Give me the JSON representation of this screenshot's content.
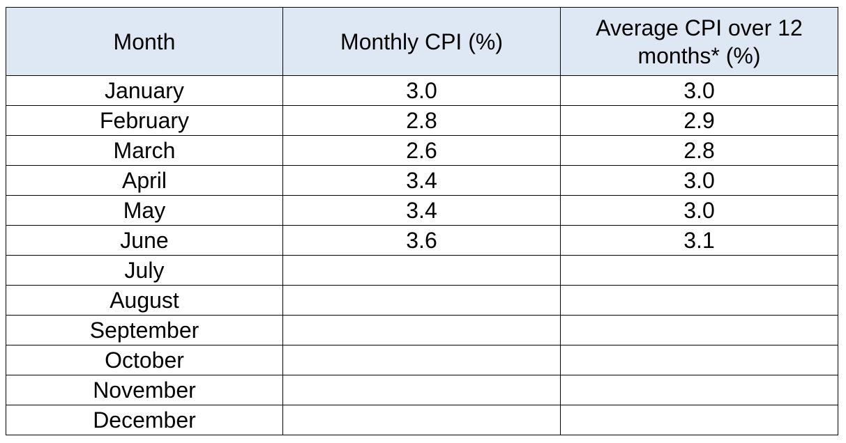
{
  "table": {
    "headers": [
      "Month",
      "Monthly CPI (%)",
      "Average CPI over 12 months* (%)"
    ],
    "rows": [
      {
        "month": "January",
        "monthly": "3.0",
        "average": "3.0"
      },
      {
        "month": "February",
        "monthly": "2.8",
        "average": "2.9"
      },
      {
        "month": "March",
        "monthly": "2.6",
        "average": "2.8"
      },
      {
        "month": "April",
        "monthly": "3.4",
        "average": "3.0"
      },
      {
        "month": "May",
        "monthly": "3.4",
        "average": "3.0"
      },
      {
        "month": "June",
        "monthly": "3.6",
        "average": "3.1"
      },
      {
        "month": "July",
        "monthly": "",
        "average": ""
      },
      {
        "month": "August",
        "monthly": "",
        "average": ""
      },
      {
        "month": "September",
        "monthly": "",
        "average": ""
      },
      {
        "month": "October",
        "monthly": "",
        "average": ""
      },
      {
        "month": "November",
        "monthly": "",
        "average": ""
      },
      {
        "month": "December",
        "monthly": "",
        "average": ""
      }
    ]
  },
  "colors": {
    "header_background": "#dde8f4",
    "border": "#000000"
  }
}
